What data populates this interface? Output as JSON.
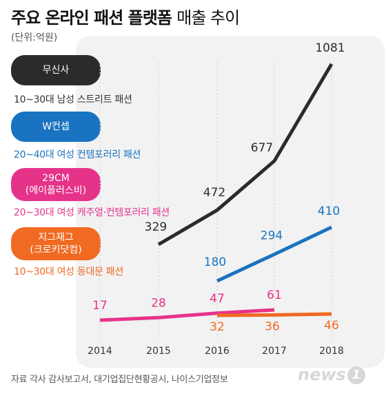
{
  "header": {
    "title_bold": "주요 온라인 패션 플랫폼",
    "title_light": "매출 추이",
    "unit": "(단위:억원)"
  },
  "platforms": [
    {
      "label_line1": "무신사",
      "label_line2": "",
      "desc": "10~30대 남성 스트리트 패션",
      "pill_color": "#2b2b2b",
      "desc_color": "#333333"
    },
    {
      "label_line1": "W컨셉",
      "label_line2": "",
      "desc": "20~40대 여성 컨템포러리 패션",
      "pill_color": "#1a73c0",
      "desc_color": "#1a73c0"
    },
    {
      "label_line1": "29CM",
      "label_line2": "(에이플러스비)",
      "desc": "20~30대 여성 캐주얼·컨템포러리 패션",
      "pill_color": "#e5338a",
      "desc_color": "#e5338a"
    },
    {
      "label_line1": "지그재그",
      "label_line2": "(크로키닷컴)",
      "desc": "10~30대 여성 동대문 패션",
      "pill_color": "#f06a22",
      "desc_color": "#f06a22"
    }
  ],
  "chart_data": {
    "type": "line",
    "x": [
      "2014",
      "2015",
      "2016",
      "2017",
      "2018"
    ],
    "series": [
      {
        "name": "무신사",
        "color": "#2b2b2b",
        "values": [
          null,
          329,
          472,
          677,
          1081
        ]
      },
      {
        "name": "W컨셉",
        "color": "#1a73c0",
        "values": [
          null,
          null,
          180,
          294,
          410
        ]
      },
      {
        "name": "29CM",
        "color": "#e5338a",
        "values": [
          17,
          28,
          47,
          61,
          null
        ]
      },
      {
        "name": "지그재그",
        "color": "#f06a22",
        "values": [
          null,
          null,
          32,
          36,
          46
        ]
      }
    ],
    "grid": "vertical"
  },
  "footer": {
    "source": "자료 각사 감사보고서, 대기업집단현황공시, 나이스기업정보",
    "logo_text": "news",
    "logo_num": "1"
  }
}
